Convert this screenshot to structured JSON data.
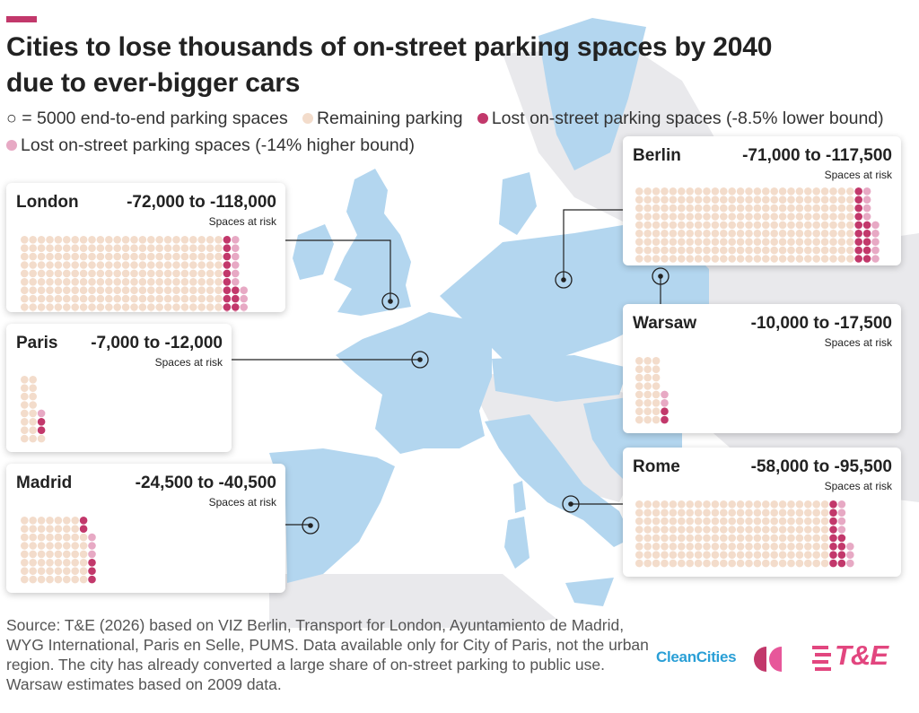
{
  "title": "Cities to lose thousands of on-street parking spaces by 2040 due to ever-bigger cars",
  "legend": [
    {
      "symbol": "○",
      "label": "= 5000 end-to-end parking spaces",
      "color": "#ffffff"
    },
    {
      "label": "Remaining parking",
      "color": "#f3dccb"
    },
    {
      "label": "Lost on-street parking spaces (-8.5% lower bound)",
      "color": "#c2386b"
    },
    {
      "label": "Lost on-street parking spaces (-14% higher bound)",
      "color": "#e7a9c4"
    }
  ],
  "colors": {
    "remaining": "#f3dccb",
    "lost_lower": "#c2386b",
    "lost_higher": "#e7a9c4",
    "land": "#b3d6ef",
    "land_grey": "#e8e8ea",
    "accent": "#c2386b"
  },
  "unit_label": "Spaces at risk",
  "chart_data": {
    "type": "waffle",
    "unit": "5000 end-to-end parking spaces per dot",
    "cities": [
      {
        "name": "London",
        "range": "-72,000 to -118,000",
        "lower": -72000,
        "higher": -118000,
        "remaining_dots": 240,
        "lost_lower_dots": 14,
        "lost_higher_dots": 10
      },
      {
        "name": "Paris",
        "range": "-7,000 to -12,000",
        "lower": -7000,
        "higher": -12000,
        "remaining_dots": 17,
        "lost_lower_dots": 2,
        "lost_higher_dots": 1
      },
      {
        "name": "Madrid",
        "range": "-24,500 to -40,500",
        "lower": -24500,
        "higher": -40500,
        "remaining_dots": 62,
        "lost_lower_dots": 5,
        "lost_higher_dots": 3
      },
      {
        "name": "Berlin",
        "range": "-71,000 to -117,500",
        "lower": -71000,
        "higher": -117500,
        "remaining_dots": 234,
        "lost_lower_dots": 14,
        "lost_higher_dots": 9
      },
      {
        "name": "Warsaw",
        "range": "-10,000 to -17,500",
        "lower": -10000,
        "higher": -17500,
        "remaining_dots": 24,
        "lost_lower_dots": 2,
        "lost_higher_dots": 2
      },
      {
        "name": "Rome",
        "range": "-58,000 to -95,500",
        "lower": -58000,
        "higher": -95500,
        "remaining_dots": 184,
        "lost_lower_dots": 12,
        "lost_higher_dots": 7
      }
    ]
  },
  "source": "Source: T&E (2026) based on VIZ Berlin, Transport for London, Ayuntamiento de Madrid, WYG International, Paris en Selle, PUMS. Data available only for City of Paris, not the urban region. The city has already converted a large share of on-street parking to public use. Warsaw estimates based on 2009 data.",
  "logos": {
    "cleancities": "CleanCities",
    "te": "T&E"
  }
}
